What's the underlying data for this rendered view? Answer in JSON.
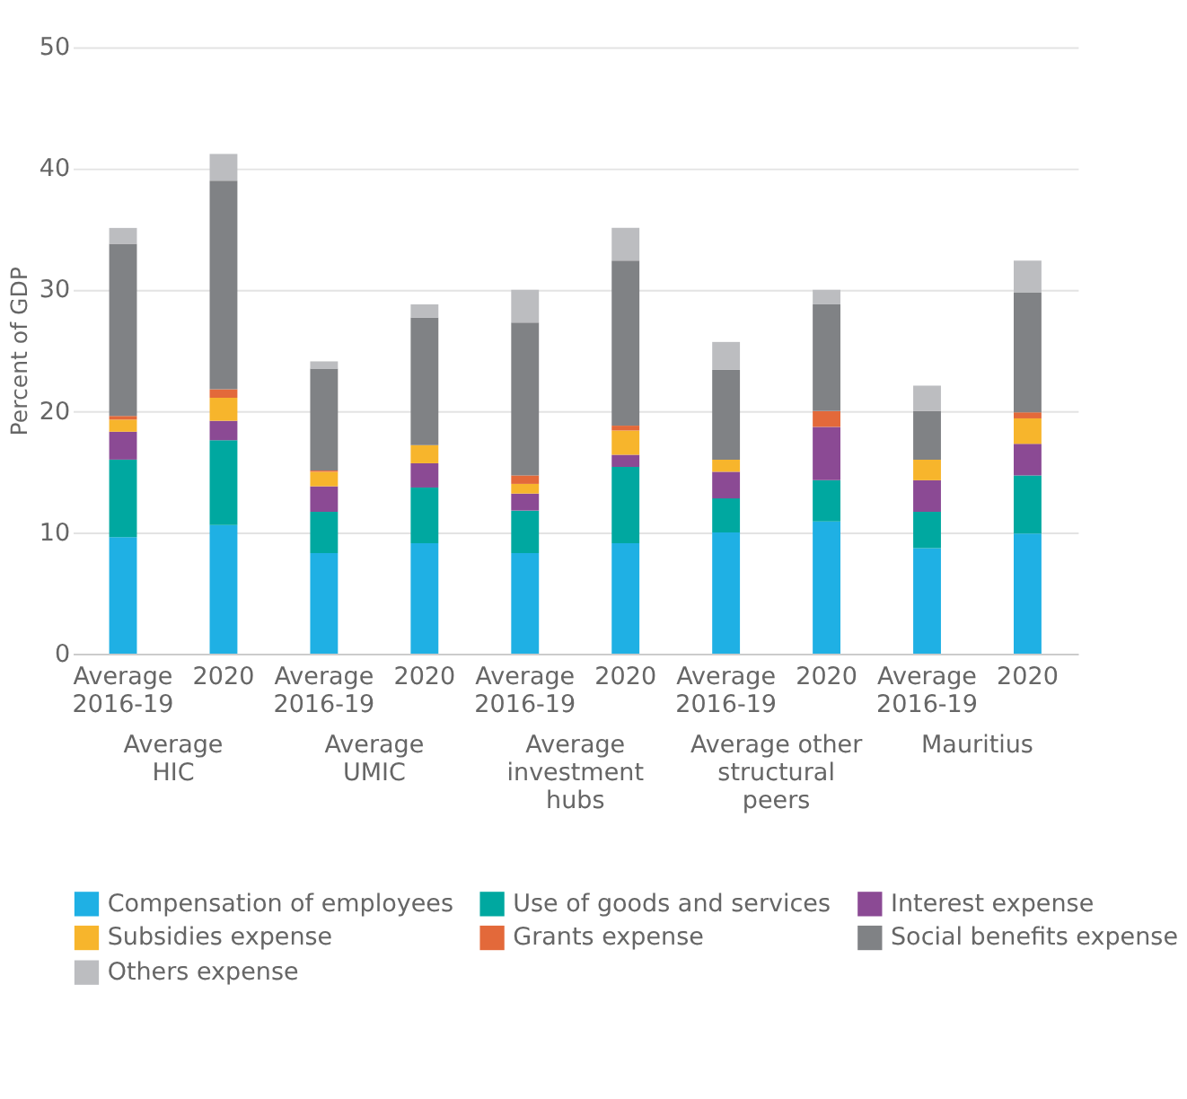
{
  "chart_data": {
    "type": "bar",
    "stacked": true,
    "ylabel": "Percent of GDP",
    "categories": [
      "Average\n2016-19",
      "2020",
      "Average\n2016-19",
      "2020",
      "Average\n2016-19",
      "2020",
      "Average\n2016-19",
      "2020",
      "Average\n2016-19",
      "2020"
    ],
    "annotations": [
      "Average\nHIC",
      "Average\nUMIC",
      "Average\ninvestment\nhubs",
      "Average other\nstructural\npeers",
      "Mauritius"
    ],
    "series": [
      {
        "name": "Compensation of employees",
        "color": "#1fb0e4",
        "values": [
          9.6,
          10.6,
          8.3,
          9.1,
          8.3,
          9.1,
          10.0,
          10.9,
          8.7,
          9.9
        ]
      },
      {
        "name": "Use of goods and services",
        "color": "#00a8a0",
        "values": [
          6.4,
          7.0,
          3.4,
          4.6,
          3.5,
          6.3,
          2.8,
          3.4,
          3.0,
          4.8
        ]
      },
      {
        "name": "Interest expense",
        "color": "#8b4a94",
        "values": [
          2.3,
          1.6,
          2.1,
          2.0,
          1.4,
          1.0,
          2.2,
          4.4,
          2.6,
          2.6
        ]
      },
      {
        "name": "Subsidies expense",
        "color": "#f7b52c",
        "values": [
          1.0,
          1.9,
          1.2,
          1.5,
          0.8,
          2.0,
          1.0,
          0.0,
          1.7,
          2.1
        ]
      },
      {
        "name": "Grants expense",
        "color": "#e3693a",
        "values": [
          0.3,
          0.7,
          0.1,
          0.0,
          0.7,
          0.4,
          0.0,
          1.3,
          0.0,
          0.5
        ]
      },
      {
        "name": "Social benefits expense",
        "color": "#808285",
        "values": [
          14.2,
          17.2,
          8.4,
          10.5,
          12.6,
          13.6,
          7.4,
          8.8,
          4.0,
          9.9
        ]
      },
      {
        "name": "Others expense",
        "color": "#bcbdc0",
        "values": [
          1.3,
          2.2,
          0.6,
          1.1,
          2.7,
          2.7,
          2.3,
          1.2,
          2.1,
          2.6
        ]
      }
    ],
    "ylim": [
      0,
      50
    ],
    "yticks": [
      0,
      10,
      20,
      30,
      40,
      50
    ],
    "grid": "y",
    "legend": "bottom"
  }
}
